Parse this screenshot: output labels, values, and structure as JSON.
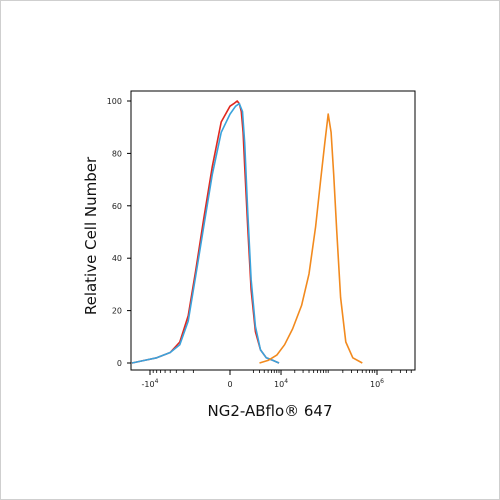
{
  "chart_data": {
    "type": "line",
    "title": "",
    "xlabel": "NG2-ABflo® 647",
    "ylabel": "Relative Cell Number",
    "x_scale": "biexponential",
    "xlim": [
      -30000,
      3000000
    ],
    "ylim": [
      0,
      100
    ],
    "y_ticks": [
      0,
      20,
      40,
      60,
      80,
      100
    ],
    "x_ticks": [
      {
        "value": -10000,
        "label": "-10",
        "exp": "4"
      },
      {
        "value": 0,
        "label": "0",
        "exp": ""
      },
      {
        "value": 10000,
        "label": "10",
        "exp": "4"
      },
      {
        "value": 1000000,
        "label": "10",
        "exp": "6"
      }
    ],
    "grid": false,
    "legend": "none",
    "series": [
      {
        "color": "#e0281f",
        "x": [
          -18000,
          -12000,
          -8000,
          -5000,
          -3500,
          -2500,
          -1800,
          -1200,
          -700,
          -300,
          0,
          200,
          400,
          550,
          700,
          850,
          1000,
          1300,
          1700,
          2300,
          3200,
          4500,
          6500,
          9000
        ],
        "y": [
          0,
          1,
          2,
          4,
          8,
          18,
          35,
          55,
          75,
          92,
          98,
          99,
          100,
          99,
          96,
          88,
          75,
          52,
          28,
          12,
          5,
          2,
          1,
          0
        ]
      },
      {
        "color": "#3aa3dc",
        "x": [
          -18000,
          -12000,
          -8000,
          -5000,
          -3500,
          -2500,
          -1800,
          -1200,
          -700,
          -300,
          0,
          300,
          550,
          800,
          1000,
          1300,
          1700,
          2300,
          3200,
          4500,
          6500,
          9000
        ],
        "y": [
          0,
          1,
          2,
          4,
          7,
          16,
          33,
          52,
          72,
          88,
          95,
          98,
          99,
          96,
          84,
          58,
          32,
          14,
          5,
          2,
          1,
          0
        ]
      },
      {
        "color": "#f28a1e",
        "x": [
          3000,
          5000,
          8000,
          12000,
          18000,
          28000,
          40000,
          55000,
          70000,
          85000,
          100000,
          115000,
          130000,
          150000,
          180000,
          230000,
          320000,
          500000
        ],
        "y": [
          0,
          1,
          3,
          7,
          13,
          22,
          34,
          52,
          70,
          84,
          95,
          88,
          72,
          50,
          25,
          8,
          2,
          0
        ]
      }
    ]
  }
}
